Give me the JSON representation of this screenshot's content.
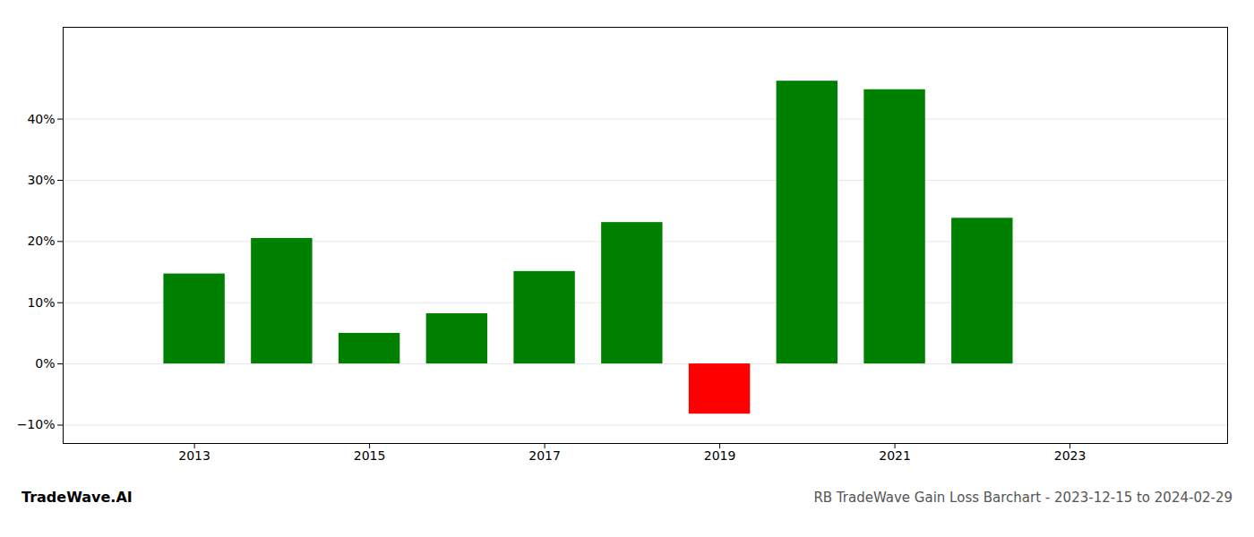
{
  "chart_data": {
    "type": "bar",
    "x": [
      2013,
      2014,
      2015,
      2016,
      2017,
      2018,
      2019,
      2020,
      2021,
      2022
    ],
    "values": [
      0.147,
      0.205,
      0.05,
      0.082,
      0.151,
      0.231,
      -0.082,
      0.462,
      0.448,
      0.238
    ],
    "colors": [
      "#008000",
      "#008000",
      "#008000",
      "#008000",
      "#008000",
      "#008000",
      "#ff0000",
      "#008000",
      "#008000",
      "#008000"
    ],
    "xlim": [
      2011.5,
      2024.8
    ],
    "xticks": [
      2013,
      2015,
      2017,
      2019,
      2021,
      2023
    ],
    "ylim": [
      -0.13,
      0.55
    ],
    "yticks": [
      {
        "value": -0.1,
        "label": "−10%"
      },
      {
        "value": 0.0,
        "label": "0%"
      },
      {
        "value": 0.1,
        "label": "10%"
      },
      {
        "value": 0.2,
        "label": "20%"
      },
      {
        "value": 0.3,
        "label": "30%"
      },
      {
        "value": 0.4,
        "label": "40%"
      }
    ],
    "grid": true,
    "annotations": [
      "TradeWave.AI",
      "RB TradeWave Gain Loss Barchart - 2023-12-15 to 2024-02-29"
    ]
  }
}
